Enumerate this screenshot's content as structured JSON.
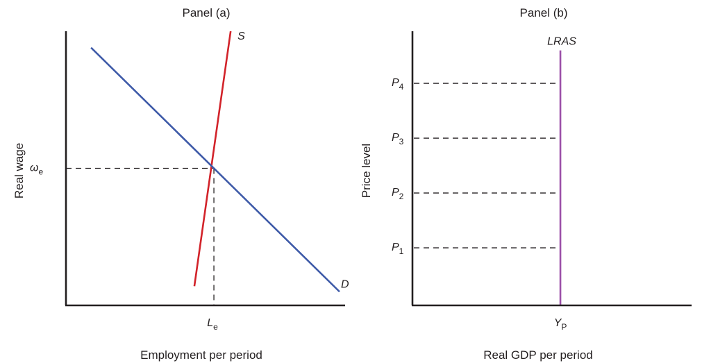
{
  "colors": {
    "axis": "#231f20",
    "supply": "#d2232a",
    "demand": "#3e5aa8",
    "lras": "#9b4fa8",
    "dashed": "#231f20"
  },
  "chart_data": [
    {
      "type": "line",
      "title": "Panel (a)",
      "xlabel": "Employment per period",
      "ylabel": "Real wage",
      "xlim": [
        0,
        10
      ],
      "ylim": [
        0,
        10
      ],
      "grid": false,
      "series": [
        {
          "name": "S",
          "color": "#d2232a",
          "x": [
            4.6,
            5.9
          ],
          "y": [
            0.7,
            10.0
          ]
        },
        {
          "name": "D",
          "color": "#3e5aa8",
          "x": [
            0.9,
            9.8
          ],
          "y": [
            9.4,
            0.5
          ]
        }
      ],
      "equilibrium": {
        "x": 5.3,
        "y": 5.0
      },
      "tick_labels": {
        "x": {
          "main": "L",
          "sub": "e",
          "value": 5.3
        },
        "y": {
          "main": "ω",
          "sub": "e",
          "value": 5.0
        }
      }
    },
    {
      "type": "line",
      "title": "Panel (b)",
      "xlabel": "Real GDP per period",
      "ylabel": "Price level",
      "xlim": [
        0,
        10
      ],
      "ylim": [
        0,
        10
      ],
      "grid": false,
      "series": [
        {
          "name": "LRAS",
          "color": "#9b4fa8",
          "x": [
            5.3,
            5.3
          ],
          "y": [
            0,
            9.3
          ]
        }
      ],
      "price_levels": [
        {
          "main": "P",
          "sub": "1",
          "value": 2.1
        },
        {
          "main": "P",
          "sub": "2",
          "value": 4.1
        },
        {
          "main": "P",
          "sub": "3",
          "value": 6.1
        },
        {
          "main": "P",
          "sub": "4",
          "value": 8.1
        }
      ],
      "tick_labels": {
        "x": {
          "main": "Y",
          "sub": "P",
          "value": 5.3
        }
      }
    }
  ]
}
